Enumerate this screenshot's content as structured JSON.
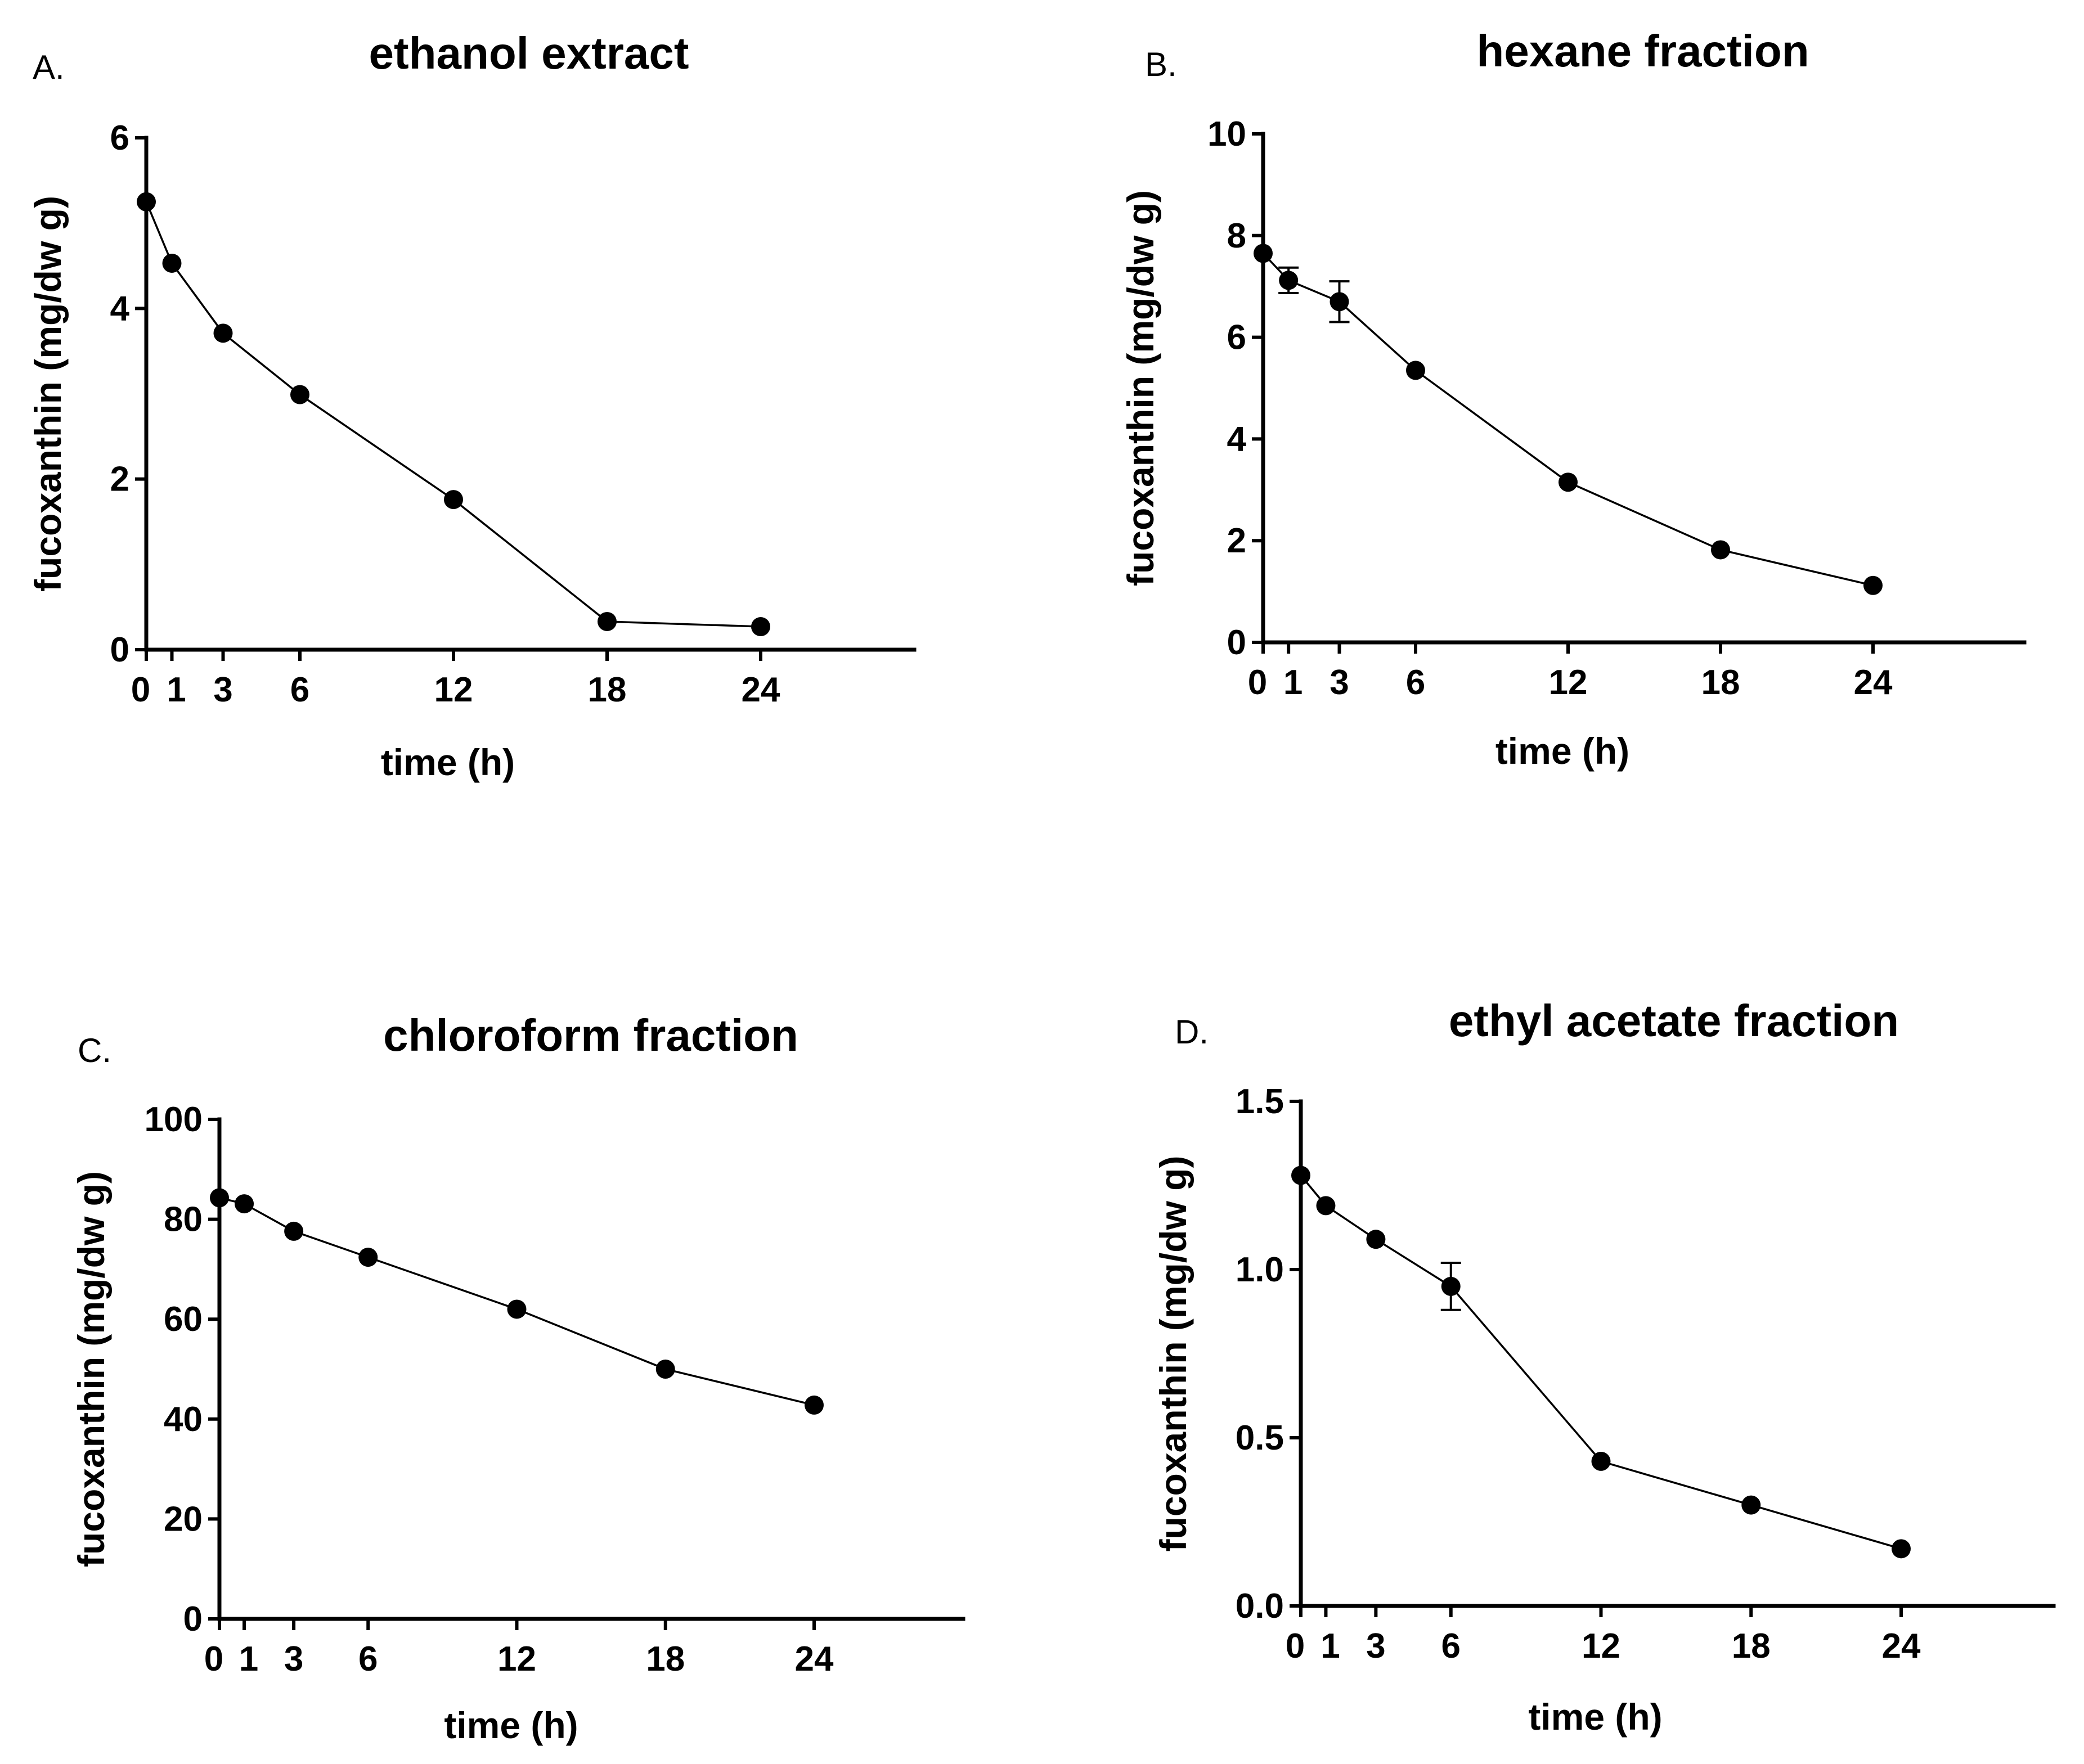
{
  "chart_data": [
    {
      "panel": "A.",
      "type": "line",
      "title": "ethanol extract",
      "xlabel": "time (h)",
      "ylabel": "fucoxanthin (mg/dw g)",
      "x": [
        0,
        1,
        3,
        6,
        12,
        18,
        24
      ],
      "y": [
        5.25,
        4.53,
        3.71,
        2.99,
        1.76,
        0.33,
        0.27
      ],
      "yerr": [
        0,
        0,
        0,
        0,
        0,
        0,
        0
      ],
      "xticks": [
        0,
        1,
        3,
        6,
        12,
        18,
        24
      ],
      "yticks": [
        0,
        2,
        4,
        6
      ],
      "ytick_labels": [
        "0",
        "2",
        "4",
        "6"
      ],
      "xlim": [
        0,
        30
      ],
      "ylim": [
        0,
        6
      ]
    },
    {
      "panel": "B.",
      "type": "line",
      "title": "hexane fraction",
      "xlabel": "time (h)",
      "ylabel": "fucoxanthin (mg/dw g)",
      "x": [
        0,
        1,
        3,
        6,
        12,
        18,
        24
      ],
      "y": [
        7.65,
        7.12,
        6.7,
        5.35,
        3.15,
        1.82,
        1.12
      ],
      "yerr": [
        0,
        0.25,
        0.4,
        0,
        0,
        0,
        0
      ],
      "xticks": [
        0,
        1,
        3,
        6,
        12,
        18,
        24
      ],
      "yticks": [
        0,
        2,
        4,
        6,
        8,
        10
      ],
      "ytick_labels": [
        "0",
        "2",
        "4",
        "6",
        "8",
        "10"
      ],
      "xlim": [
        0,
        30
      ],
      "ylim": [
        0,
        10
      ]
    },
    {
      "panel": "C.",
      "type": "line",
      "title": "chloroform fraction",
      "xlabel": "time (h)",
      "ylabel": "fucoxanthin (mg/dw g)",
      "x": [
        0,
        1,
        3,
        6,
        12,
        18,
        24
      ],
      "y": [
        84.3,
        83.1,
        77.6,
        72.4,
        62.0,
        50.0,
        42.8
      ],
      "yerr": [
        0,
        0,
        0,
        0,
        0,
        0,
        0
      ],
      "xticks": [
        0,
        1,
        3,
        6,
        12,
        18,
        24
      ],
      "yticks": [
        0,
        20,
        40,
        60,
        80,
        100
      ],
      "ytick_labels": [
        "0",
        "20",
        "40",
        "60",
        "80",
        "100"
      ],
      "xlim": [
        0,
        30
      ],
      "ylim": [
        0,
        100
      ]
    },
    {
      "panel": "D.",
      "type": "line",
      "title": "ethyl acetate fraction",
      "xlabel": "time (h)",
      "ylabel": "fucoxanthin (mg/dw g)",
      "x": [
        0,
        1,
        3,
        6,
        12,
        18,
        24
      ],
      "y": [
        1.28,
        1.19,
        1.09,
        0.95,
        0.43,
        0.3,
        0.17
      ],
      "yerr": [
        0,
        0,
        0,
        0.07,
        0,
        0,
        0
      ],
      "xticks": [
        0,
        1,
        3,
        6,
        12,
        18,
        24
      ],
      "yticks": [
        0,
        0.5,
        1.0,
        1.5
      ],
      "ytick_labels": [
        "0.0",
        "0.5",
        "1.0",
        "1.5"
      ],
      "xlim": [
        0,
        30
      ],
      "ylim": [
        0,
        1.5
      ]
    }
  ]
}
